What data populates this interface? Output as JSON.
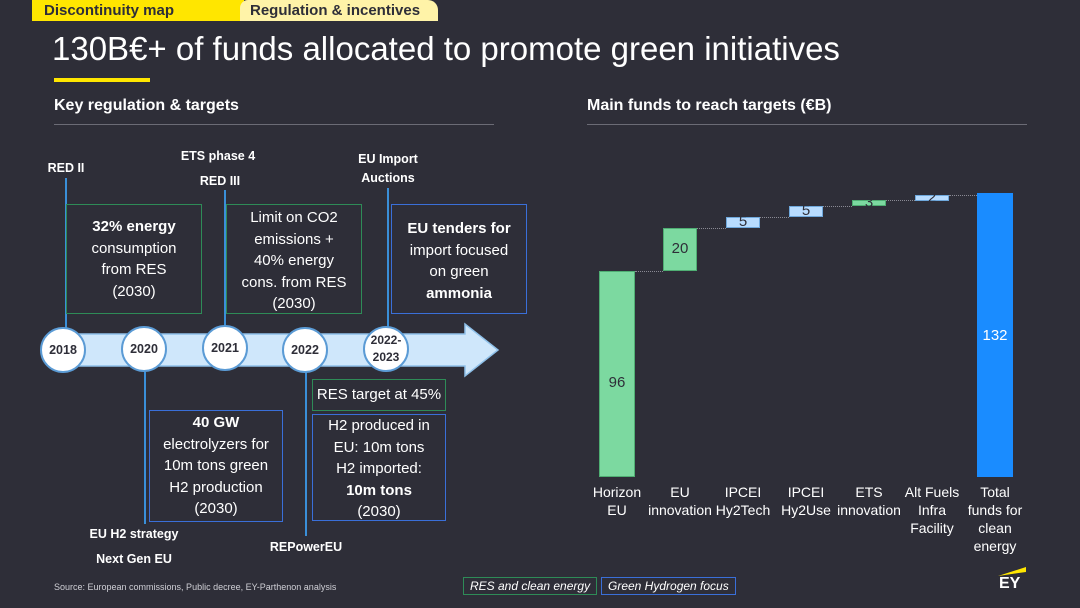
{
  "tabs": [
    "Discontinuity map",
    "Regulation & incentives"
  ],
  "title": "130B€+ of funds allocated to promote green initiatives",
  "left_section_title": "Key regulation & targets",
  "right_section_title": "Main funds to reach targets (€B)",
  "timeline": {
    "years": [
      "2018",
      "2020",
      "2021",
      "2022",
      "2022-2023"
    ],
    "top_labels": {
      "red2": "RED II",
      "ets4": "ETS phase 4",
      "red3": "RED III",
      "eu_import_1": "EU Import",
      "eu_import_2": "Auctions"
    },
    "bottom_labels": {
      "h2strategy": "EU H2 strategy",
      "nextgen": "Next Gen EU",
      "repower": "REPowerEU"
    },
    "boxes": {
      "b2018": [
        "32% energy",
        "consumption",
        "from RES",
        "(2030)"
      ],
      "b2021": [
        "Limit on CO2",
        "emissions  +",
        "40% energy",
        "cons. from RES",
        "(2030)"
      ],
      "bimport": [
        "EU tenders for",
        "import focused",
        "on green",
        "ammonia"
      ],
      "b2020": [
        "40 GW",
        "electrolyzers for",
        "10m tons green",
        "H2 production",
        "(2030)"
      ],
      "b2022_green": "RES target at 45%",
      "b2022_blue": [
        "H2 produced in",
        "EU: 10m tons",
        "H2 imported:",
        "10m tons",
        "(2030)"
      ]
    }
  },
  "chart_data": {
    "type": "waterfall",
    "categories": [
      "Horizon EU",
      "EU innovation",
      "IPCEI Hy2Tech",
      "IPCEI Hy2Use",
      "ETS innovation",
      "Alt Fuels Infra Facility",
      "Total funds for clean energy"
    ],
    "values": [
      96,
      20,
      5,
      5,
      3,
      2,
      132
    ],
    "colors": {
      "increment": "#7cd9a0",
      "total": "#1a8cff",
      "highlight": "#b8dcff"
    }
  },
  "legend": [
    "RES and clean energy",
    "Green Hydrogen focus"
  ],
  "source": "Source: European commissions, Public decree, EY-Parthenon analysis",
  "logo": "EY"
}
